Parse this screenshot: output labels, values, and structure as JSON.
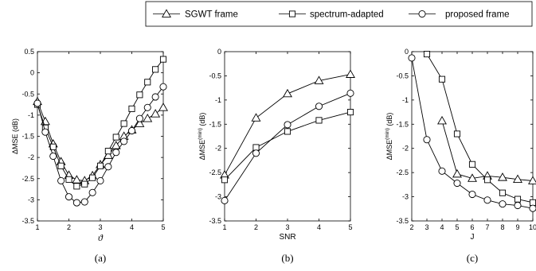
{
  "legend": {
    "items": [
      {
        "label": "SGWT frame",
        "marker": "triangle"
      },
      {
        "label": "spectrum-adapted",
        "marker": "square"
      },
      {
        "label": "proposed frame",
        "marker": "circle"
      }
    ]
  },
  "chart_data": [
    {
      "type": "line",
      "panel_label": "(a)",
      "xlabel": "ϑ",
      "ylabel": "ΔMSE (dB)",
      "ylabel_sup": "",
      "xlim": [
        1,
        5
      ],
      "ylim": [
        -3.5,
        0.5
      ],
      "xticks": [
        "1",
        "2",
        "3",
        "4",
        "5"
      ],
      "yticks": [
        "-3.5",
        "-3",
        "-2.5",
        "-2",
        "-1.5",
        "-1",
        "-0.5",
        "0",
        "0.5"
      ],
      "series": [
        {
          "name": "SGWT frame",
          "marker": "triangle",
          "x": [
            1,
            1.25,
            1.5,
            1.75,
            2,
            2.25,
            2.5,
            2.75,
            3,
            3.25,
            3.5,
            3.75,
            4,
            4.25,
            4.5,
            4.75,
            5
          ],
          "y": [
            -0.68,
            -1.15,
            -1.68,
            -2.1,
            -2.42,
            -2.53,
            -2.55,
            -2.43,
            -2.17,
            -1.95,
            -1.72,
            -1.5,
            -1.35,
            -1.2,
            -1.08,
            -0.97,
            -0.82
          ]
        },
        {
          "name": "spectrum-adapted",
          "marker": "square",
          "x": [
            1,
            1.25,
            1.5,
            1.75,
            2,
            2.25,
            2.5,
            2.75,
            3,
            3.25,
            3.5,
            3.75,
            4,
            4.25,
            4.5,
            4.75,
            5
          ],
          "y": [
            -0.75,
            -1.3,
            -1.75,
            -2.2,
            -2.52,
            -2.68,
            -2.63,
            -2.48,
            -2.2,
            -1.85,
            -1.52,
            -1.2,
            -0.85,
            -0.52,
            -0.22,
            0.08,
            0.32
          ]
        },
        {
          "name": "proposed frame",
          "marker": "circle",
          "x": [
            1,
            1.25,
            1.5,
            1.75,
            2,
            2.25,
            2.5,
            2.75,
            3,
            3.25,
            3.5,
            3.75,
            4,
            4.25,
            4.5,
            4.75,
            5
          ],
          "y": [
            -0.72,
            -1.4,
            -1.97,
            -2.55,
            -2.93,
            -3.07,
            -3.05,
            -2.83,
            -2.55,
            -2.22,
            -1.88,
            -1.62,
            -1.37,
            -1.08,
            -0.82,
            -0.57,
            -0.33
          ]
        }
      ]
    },
    {
      "type": "line",
      "panel_label": "(b)",
      "xlabel": "SNR",
      "ylabel": "ΔMSE",
      "ylabel_sup": "(min)",
      "ylabel_tail": " (dB)",
      "xlim": [
        1,
        5
      ],
      "ylim": [
        -3.5,
        0
      ],
      "xticks": [
        "1",
        "2",
        "3",
        "4",
        "5"
      ],
      "yticks": [
        "-3.5",
        "-3",
        "-2.5",
        "-2",
        "-1.5",
        "-1",
        "-0.5",
        "0"
      ],
      "series": [
        {
          "name": "SGWT frame",
          "marker": "triangle",
          "x": [
            1,
            2,
            3,
            4,
            5
          ],
          "y": [
            -2.55,
            -1.37,
            -0.87,
            -0.6,
            -0.47
          ]
        },
        {
          "name": "spectrum-adapted",
          "marker": "square",
          "x": [
            1,
            2,
            3,
            4,
            5
          ],
          "y": [
            -2.65,
            -1.98,
            -1.65,
            -1.42,
            -1.25
          ]
        },
        {
          "name": "proposed frame",
          "marker": "circle",
          "x": [
            1,
            2,
            3,
            4,
            5
          ],
          "y": [
            -3.08,
            -2.1,
            -1.51,
            -1.13,
            -0.86
          ]
        }
      ]
    },
    {
      "type": "line",
      "panel_label": "(c)",
      "xlabel": "J",
      "ylabel": "ΔMSE",
      "ylabel_sup": "(min)",
      "ylabel_tail": " (dB)",
      "xlim": [
        2,
        10
      ],
      "ylim": [
        -3.5,
        0
      ],
      "xticks": [
        "2",
        "3",
        "4",
        "5",
        "6",
        "7",
        "8",
        "9",
        "10"
      ],
      "yticks": [
        "-3.5",
        "-3",
        "-2.5",
        "-2",
        "-1.5",
        "-1",
        "-0.5",
        "0"
      ],
      "series": [
        {
          "name": "SGWT frame",
          "marker": "triangle",
          "x": [
            4,
            5,
            6,
            7,
            8,
            9,
            10
          ],
          "y": [
            -1.43,
            -2.53,
            -2.62,
            -2.57,
            -2.6,
            -2.64,
            -2.67
          ]
        },
        {
          "name": "spectrum-adapted",
          "marker": "square",
          "x": [
            3,
            4,
            5,
            6,
            7,
            8,
            9,
            10
          ],
          "y": [
            -0.05,
            -0.57,
            -1.7,
            -2.33,
            -2.65,
            -2.92,
            -3.05,
            -3.12
          ]
        },
        {
          "name": "proposed frame",
          "marker": "circle",
          "x": [
            2,
            3,
            4,
            5,
            6,
            7,
            8,
            9,
            10
          ],
          "y": [
            -0.13,
            -1.82,
            -2.47,
            -2.72,
            -2.95,
            -3.07,
            -3.15,
            -3.18,
            -3.24
          ]
        }
      ]
    }
  ]
}
